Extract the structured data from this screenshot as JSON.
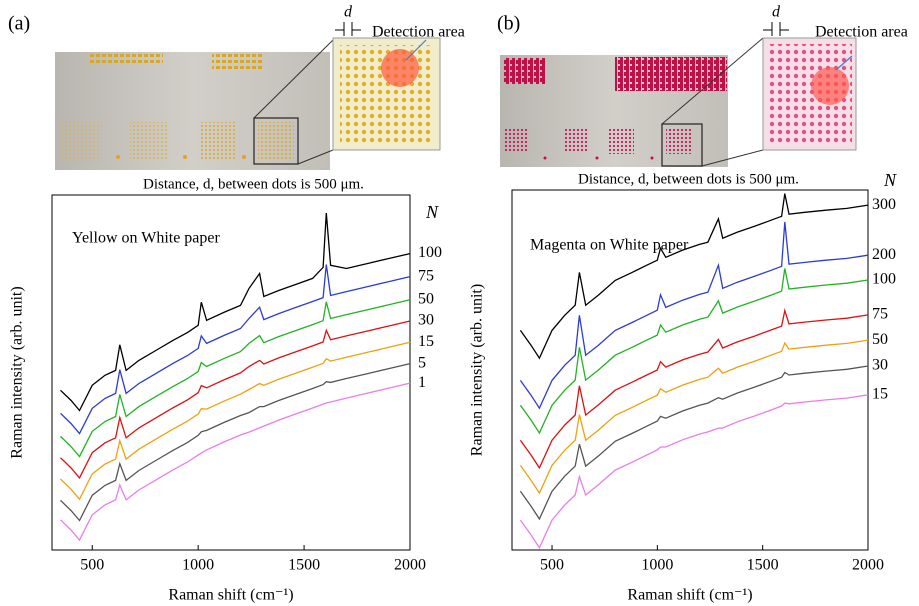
{
  "chart_data": [
    {
      "type": "line",
      "panel_label": "(a)",
      "inset_labels": [
        "d",
        "Detection area"
      ],
      "caption": "Distance, d, between dots is 500 μm.",
      "annotation": "Yellow on White paper",
      "legend_title": "N",
      "x_label": "Raman shift (cm⁻¹)",
      "y_label": "Raman intensity (arb. unit)",
      "x": [
        350,
        400,
        440,
        500,
        560,
        610,
        630,
        660,
        720,
        800,
        880,
        950,
        1000,
        1015,
        1040,
        1120,
        1200,
        1240,
        1290,
        1310,
        1380,
        1460,
        1540,
        1590,
        1605,
        1625,
        1700,
        1800,
        1900,
        2000
      ],
      "xlim": [
        310,
        2000
      ],
      "xticks": [
        500,
        1000,
        1500,
        2000
      ],
      "ylim": [
        0,
        100
      ],
      "grid": false,
      "series": [
        {
          "name": "100",
          "color": "#000000",
          "values": [
            45.0,
            42.1,
            39.3,
            46.4,
            49.2,
            50.6,
            57.8,
            50.6,
            53.4,
            56.2,
            59.0,
            61.3,
            63.3,
            69.8,
            64.7,
            66.9,
            68.9,
            73.7,
            77.9,
            71.4,
            73.1,
            74.8,
            76.5,
            79.6,
            94.9,
            80.2,
            79.3,
            80.7,
            82.1,
            83.5
          ]
        },
        {
          "name": "75",
          "color": "#2a3bd6",
          "values": [
            38.5,
            35.6,
            32.8,
            39.9,
            42.7,
            44.1,
            50.8,
            44.1,
            46.9,
            49.7,
            52.5,
            54.8,
            56.8,
            60.3,
            58.2,
            60.4,
            62.4,
            65.2,
            68.4,
            64.9,
            66.6,
            68.3,
            70.0,
            71.1,
            80.4,
            71.7,
            72.8,
            74.2,
            75.6,
            77.0
          ]
        },
        {
          "name": "50",
          "color": "#22b322",
          "values": [
            32.0,
            29.1,
            26.3,
            33.4,
            36.2,
            37.6,
            43.8,
            37.6,
            40.4,
            43.2,
            46.0,
            48.3,
            50.3,
            52.8,
            51.7,
            53.9,
            55.9,
            58.2,
            60.4,
            58.4,
            60.1,
            61.8,
            63.5,
            64.6,
            69.9,
            65.2,
            66.3,
            67.7,
            69.1,
            70.5
          ]
        },
        {
          "name": "30",
          "color": "#e01010",
          "values": [
            26.0,
            23.1,
            20.3,
            27.4,
            30.2,
            31.6,
            37.3,
            31.6,
            34.4,
            37.2,
            40.0,
            42.3,
            44.3,
            46.3,
            45.7,
            47.9,
            49.9,
            51.7,
            53.4,
            52.4,
            54.1,
            55.8,
            57.5,
            58.6,
            61.9,
            59.2,
            60.3,
            61.7,
            63.1,
            64.5
          ]
        },
        {
          "name": "15",
          "color": "#f0a010",
          "values": [
            20.0,
            17.1,
            14.3,
            21.4,
            24.2,
            25.6,
            30.8,
            25.6,
            28.4,
            31.2,
            34.0,
            36.3,
            38.3,
            39.8,
            39.7,
            41.9,
            43.9,
            45.2,
            46.9,
            46.4,
            48.1,
            49.8,
            51.5,
            52.6,
            53.9,
            53.2,
            54.3,
            55.7,
            57.1,
            58.5
          ]
        },
        {
          "name": "5",
          "color": "#555555",
          "values": [
            14.0,
            11.1,
            8.3,
            15.4,
            18.2,
            19.6,
            24.3,
            19.6,
            22.4,
            25.2,
            28.0,
            30.3,
            32.3,
            33.3,
            33.7,
            35.9,
            37.9,
            38.7,
            40.4,
            40.4,
            42.1,
            43.8,
            45.5,
            46.6,
            47.4,
            47.2,
            48.3,
            49.7,
            51.1,
            52.5
          ]
        },
        {
          "name": "1",
          "color": "#e87ee8",
          "values": [
            8.5,
            5.6,
            2.8,
            9.9,
            12.7,
            14.1,
            18.3,
            14.1,
            16.9,
            19.7,
            22.5,
            24.8,
            26.8,
            27.3,
            28.2,
            30.4,
            32.4,
            33.2,
            34.4,
            34.9,
            36.6,
            38.3,
            40.0,
            41.1,
            41.4,
            41.7,
            42.8,
            44.2,
            45.6,
            47.0
          ]
        }
      ]
    },
    {
      "type": "line",
      "panel_label": "(b)",
      "inset_labels": [
        "d",
        "Detection area"
      ],
      "caption": "Distance, d, between dots is 500 μm.",
      "annotation": "Magenta on White paper",
      "legend_title": "N",
      "x_label": "Raman shift (cm⁻¹)",
      "y_label": "Raman intensity (arb. unit)",
      "x": [
        350,
        400,
        440,
        500,
        560,
        610,
        630,
        660,
        720,
        800,
        880,
        950,
        1000,
        1015,
        1040,
        1120,
        1200,
        1240,
        1290,
        1310,
        1380,
        1460,
        1540,
        1590,
        1605,
        1625,
        1700,
        1800,
        1900,
        2000
      ],
      "xlim": [
        310,
        2000
      ],
      "xticks": [
        500,
        1000,
        1500,
        2000
      ],
      "ylim": [
        0,
        100
      ],
      "grid": false,
      "series": [
        {
          "name": "300",
          "color": "#000000",
          "values": [
            61.0,
            56.9,
            53.3,
            61.0,
            65.2,
            68.0,
            77.1,
            68.0,
            70.8,
            74.9,
            77.1,
            79.1,
            80.5,
            83.8,
            81.3,
            83.3,
            84.9,
            85.5,
            92.0,
            86.6,
            88.3,
            89.9,
            91.6,
            92.7,
            99.0,
            93.3,
            93.8,
            94.4,
            94.9,
            95.8
          ]
        },
        {
          "name": "200",
          "color": "#2a3bd6",
          "values": [
            47.1,
            43.0,
            39.4,
            47.1,
            51.3,
            54.1,
            65.2,
            54.1,
            56.9,
            61.0,
            63.2,
            65.2,
            66.6,
            70.9,
            67.4,
            69.4,
            71.0,
            71.6,
            79.1,
            72.7,
            74.4,
            76.0,
            77.7,
            78.8,
            91.1,
            79.4,
            79.9,
            80.5,
            81.0,
            81.9
          ]
        },
        {
          "name": "100",
          "color": "#22b322",
          "values": [
            40.2,
            36.1,
            32.5,
            40.2,
            44.4,
            47.2,
            56.3,
            47.2,
            50.0,
            54.1,
            56.3,
            58.3,
            59.7,
            62.5,
            60.5,
            62.5,
            64.1,
            64.7,
            69.2,
            65.8,
            67.5,
            69.1,
            70.8,
            71.9,
            78.2,
            72.5,
            73.0,
            73.6,
            74.1,
            75.0
          ]
        },
        {
          "name": "75",
          "color": "#e01010",
          "values": [
            30.5,
            26.4,
            22.8,
            30.5,
            34.7,
            37.5,
            45.6,
            37.5,
            40.3,
            44.4,
            46.6,
            48.6,
            50.0,
            52.3,
            50.8,
            52.8,
            54.4,
            55.0,
            58.5,
            56.1,
            57.8,
            59.4,
            61.1,
            62.2,
            66.5,
            62.8,
            63.3,
            63.9,
            64.4,
            65.3
          ]
        },
        {
          "name": "50",
          "color": "#f0a010",
          "values": [
            23.5,
            19.4,
            15.8,
            23.5,
            27.7,
            30.5,
            37.6,
            30.5,
            33.3,
            37.4,
            39.6,
            41.6,
            43.0,
            44.8,
            43.8,
            45.8,
            47.4,
            48.0,
            50.5,
            49.1,
            50.8,
            52.4,
            54.1,
            55.2,
            57.5,
            55.8,
            56.3,
            56.9,
            57.4,
            58.3
          ]
        },
        {
          "name": "30",
          "color": "#555555",
          "values": [
            16.3,
            12.2,
            8.6,
            16.3,
            20.5,
            23.3,
            29.4,
            23.3,
            26.1,
            30.2,
            32.4,
            34.4,
            35.8,
            37.1,
            36.6,
            38.6,
            40.2,
            40.8,
            42.3,
            41.9,
            43.6,
            45.2,
            46.9,
            48.0,
            49.3,
            48.6,
            49.1,
            49.7,
            50.2,
            51.1
          ]
        },
        {
          "name": "15",
          "color": "#e87ee8",
          "values": [
            8.3,
            4.2,
            0.6,
            8.3,
            12.5,
            15.3,
            20.4,
            15.3,
            18.1,
            22.2,
            24.4,
            26.4,
            27.8,
            28.6,
            28.6,
            30.6,
            32.2,
            32.8,
            33.8,
            33.9,
            35.6,
            37.2,
            38.9,
            40.0,
            40.8,
            40.6,
            41.1,
            41.7,
            42.2,
            43.1
          ]
        }
      ]
    }
  ]
}
